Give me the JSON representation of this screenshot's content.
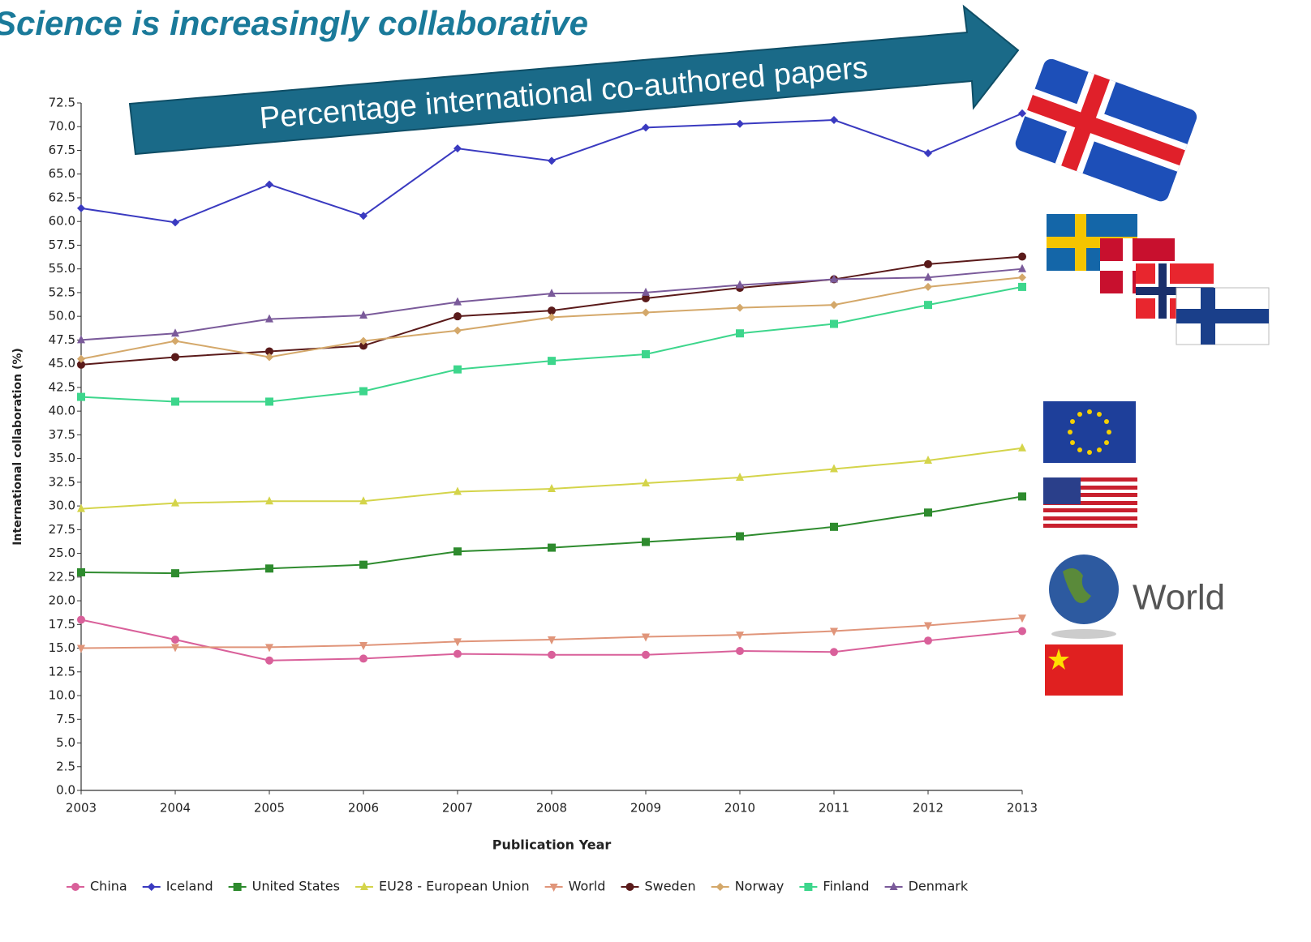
{
  "chart_data": {
    "type": "line",
    "title": "Science is increasingly collaborative",
    "annotations": [
      "Percentage international co-authored papers",
      "World"
    ],
    "x_label": "Publication Year",
    "y_label": "International collaboration (%)",
    "x": [
      2003,
      2004,
      2005,
      2006,
      2007,
      2008,
      2009,
      2010,
      2011,
      2012,
      2013
    ],
    "xlim": [
      2003,
      2013
    ],
    "xticks": [
      2003,
      2004,
      2005,
      2006,
      2007,
      2008,
      2009,
      2010,
      2011,
      2012,
      2013
    ],
    "ylim": [
      0,
      72.5
    ],
    "yticks": [
      {
        "value": 0,
        "label": "0.0"
      },
      2.5,
      {
        "value": 5,
        "label": "5.0"
      },
      7.5,
      {
        "value": 10,
        "label": "10.0"
      },
      12.5,
      {
        "value": 15,
        "label": "15.0"
      },
      17.5,
      {
        "value": 20,
        "label": "20.0"
      },
      22.5,
      {
        "value": 25,
        "label": "25.0"
      },
      27.5,
      {
        "value": 30,
        "label": "30.0"
      },
      32.5,
      {
        "value": 35,
        "label": "35.0"
      },
      37.5,
      {
        "value": 40,
        "label": "40.0"
      },
      42.5,
      {
        "value": 45,
        "label": "45.0"
      },
      47.5,
      {
        "value": 50,
        "label": "50.0"
      },
      52.5,
      {
        "value": 55,
        "label": "55.0"
      },
      57.5,
      {
        "value": 60,
        "label": "60.0"
      },
      62.5,
      {
        "value": 65,
        "label": "65.0"
      },
      67.5,
      {
        "value": 70,
        "label": "70.0"
      },
      72.5
    ],
    "legend": "bottom",
    "series": [
      {
        "name": "China",
        "color": "#d9609a",
        "marker": "circle",
        "values": [
          18.0,
          15.9,
          13.7,
          13.9,
          14.4,
          14.3,
          14.3,
          14.7,
          14.6,
          15.8,
          16.8
        ]
      },
      {
        "name": "Iceland",
        "color": "#3a3ac0",
        "marker": "diamond",
        "values": [
          61.4,
          59.9,
          63.9,
          60.6,
          67.7,
          66.4,
          69.9,
          70.3,
          70.7,
          67.2,
          71.4
        ]
      },
      {
        "name": "United States",
        "color": "#2e8b2e",
        "marker": "square",
        "values": [
          23.0,
          22.9,
          23.4,
          23.8,
          25.2,
          25.6,
          26.2,
          26.8,
          27.8,
          29.3,
          31.0
        ]
      },
      {
        "name": "EU28 - European Union",
        "color": "#d4d44a",
        "marker": "triangle",
        "values": [
          29.7,
          30.3,
          30.5,
          30.5,
          31.5,
          31.8,
          32.4,
          33.0,
          33.9,
          34.8,
          36.1
        ]
      },
      {
        "name": "World",
        "color": "#e0957a",
        "marker": "triangle-down",
        "values": [
          15.0,
          15.1,
          15.1,
          15.3,
          15.7,
          15.9,
          16.2,
          16.4,
          16.8,
          17.4,
          18.2
        ]
      },
      {
        "name": "Sweden",
        "color": "#5a1a1a",
        "marker": "circle",
        "values": [
          44.9,
          45.7,
          46.3,
          46.9,
          50.0,
          50.6,
          51.9,
          53.0,
          53.9,
          55.5,
          56.3
        ]
      },
      {
        "name": "Norway",
        "color": "#d4a86a",
        "marker": "diamond",
        "values": [
          45.5,
          47.4,
          45.7,
          47.4,
          48.5,
          49.9,
          50.4,
          50.9,
          51.2,
          53.1,
          54.1
        ]
      },
      {
        "name": "Finland",
        "color": "#3dd68c",
        "marker": "square",
        "values": [
          41.5,
          41.0,
          41.0,
          42.1,
          44.4,
          45.3,
          46.0,
          48.2,
          49.2,
          51.2,
          53.1
        ]
      },
      {
        "name": "Denmark",
        "color": "#7a5a9a",
        "marker": "triangle",
        "values": [
          47.5,
          48.2,
          49.7,
          50.1,
          51.5,
          52.4,
          52.5,
          53.3,
          53.9,
          54.1,
          55.0
        ]
      }
    ]
  }
}
